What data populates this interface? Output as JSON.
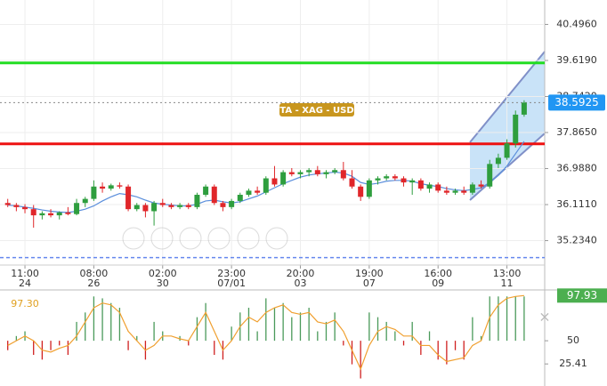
{
  "chart_data": [
    {
      "type": "candlestick",
      "annotation": "TA - XAG - USD",
      "categories": [
        null,
        null,
        {
          "time": "11:00",
          "date": "24"
        },
        null,
        null,
        null,
        null,
        null,
        null,
        null,
        {
          "time": "08:00",
          "date": "26"
        },
        null,
        null,
        null,
        null,
        null,
        null,
        null,
        {
          "time": "02:00",
          "date": "30"
        },
        null,
        null,
        null,
        null,
        null,
        null,
        null,
        {
          "time": "23:00",
          "date": "07/01"
        },
        null,
        null,
        null,
        null,
        null,
        null,
        null,
        {
          "time": "20:00",
          "date": "03"
        },
        null,
        null,
        null,
        null,
        null,
        null,
        null,
        {
          "time": "19:00",
          "date": "07"
        },
        null,
        null,
        null,
        null,
        null,
        null,
        null,
        {
          "time": "16:00",
          "date": "09"
        },
        null,
        null,
        null,
        null,
        null,
        null,
        null,
        {
          "time": "13:00",
          "date": "11"
        },
        null,
        null
      ],
      "open": [
        36.15,
        36.1,
        36.05,
        36.0,
        35.85,
        35.9,
        35.85,
        35.92,
        35.88,
        36.15,
        36.25,
        36.55,
        36.5,
        36.58,
        36.55,
        36.0,
        36.1,
        35.95,
        36.15,
        36.1,
        36.05,
        36.1,
        36.05,
        36.35,
        36.55,
        36.15,
        36.05,
        36.2,
        36.35,
        36.45,
        36.4,
        36.75,
        36.6,
        36.9,
        36.85,
        36.9,
        36.95,
        36.85,
        36.9,
        36.95,
        36.75,
        36.55,
        36.3,
        36.7,
        36.75,
        36.8,
        36.75,
        36.65,
        36.7,
        36.5,
        36.6,
        36.45,
        36.4,
        36.45,
        36.4,
        36.6,
        36.55,
        37.1,
        37.25,
        37.6,
        38.3
      ],
      "high": [
        36.25,
        36.15,
        36.12,
        36.1,
        35.95,
        36.0,
        35.95,
        36.05,
        36.25,
        36.3,
        36.7,
        36.65,
        36.62,
        36.65,
        36.6,
        36.15,
        36.15,
        36.2,
        36.25,
        36.15,
        36.15,
        36.15,
        36.4,
        36.6,
        36.6,
        36.2,
        36.25,
        36.4,
        36.5,
        36.55,
        36.8,
        37.05,
        36.95,
        37.0,
        36.95,
        37.0,
        37.05,
        36.95,
        37.0,
        37.15,
        36.95,
        36.6,
        36.75,
        36.8,
        36.85,
        36.85,
        36.8,
        36.75,
        36.75,
        36.65,
        36.65,
        36.55,
        36.5,
        36.55,
        36.65,
        36.7,
        37.2,
        37.35,
        37.7,
        38.4,
        38.65
      ],
      "low": [
        36.05,
        35.95,
        35.9,
        35.55,
        35.75,
        35.8,
        35.75,
        35.85,
        35.85,
        36.05,
        36.2,
        36.4,
        36.45,
        36.5,
        35.95,
        35.95,
        35.8,
        35.6,
        36.05,
        36.0,
        36.0,
        36.0,
        36.0,
        36.3,
        36.1,
        35.95,
        36.0,
        36.15,
        36.3,
        36.35,
        36.35,
        36.55,
        36.55,
        36.8,
        36.75,
        36.8,
        36.8,
        36.75,
        36.85,
        36.7,
        36.5,
        36.2,
        36.25,
        36.6,
        36.7,
        36.7,
        36.55,
        36.35,
        36.45,
        36.4,
        36.4,
        36.35,
        36.35,
        36.35,
        36.35,
        36.5,
        36.5,
        37.0,
        37.2,
        37.5,
        38.25
      ],
      "close": [
        36.1,
        36.05,
        36.0,
        35.85,
        35.9,
        35.85,
        35.92,
        35.88,
        36.15,
        36.25,
        36.55,
        36.5,
        36.58,
        36.55,
        36.0,
        36.1,
        35.95,
        36.15,
        36.1,
        36.05,
        36.1,
        36.05,
        36.35,
        36.55,
        36.15,
        36.05,
        36.2,
        36.35,
        36.45,
        36.4,
        36.75,
        36.6,
        36.9,
        36.85,
        36.9,
        36.95,
        36.85,
        36.9,
        36.95,
        36.75,
        36.55,
        36.3,
        36.7,
        36.75,
        36.8,
        36.75,
        36.65,
        36.7,
        36.5,
        36.6,
        36.45,
        36.4,
        36.45,
        36.4,
        36.6,
        36.55,
        37.1,
        37.25,
        37.6,
        38.3,
        38.5925
      ],
      "up_color": "#2e9e3e",
      "down_color": "#e0262a",
      "ma": {
        "color": "#5b8fdc",
        "values": [
          36.1,
          36.08,
          36.05,
          36.02,
          35.98,
          35.95,
          35.93,
          35.92,
          35.95,
          36.0,
          36.08,
          36.2,
          36.3,
          36.38,
          36.35,
          36.3,
          36.22,
          36.15,
          36.12,
          36.1,
          36.08,
          36.08,
          36.12,
          36.2,
          36.22,
          36.18,
          36.15,
          36.18,
          36.25,
          36.32,
          36.42,
          36.52,
          36.62,
          36.7,
          36.78,
          36.83,
          36.86,
          36.88,
          36.9,
          36.88,
          36.8,
          36.65,
          36.6,
          36.63,
          36.68,
          36.7,
          36.7,
          36.68,
          36.62,
          36.58,
          36.55,
          36.5,
          36.47,
          36.45,
          36.48,
          36.52,
          36.65,
          36.82,
          37.05,
          37.35,
          37.65
        ]
      },
      "levels": [
        {
          "value": 39.56,
          "color": "#22dd22",
          "dashed": false
        },
        {
          "value": 37.59,
          "color": "#ee1111",
          "dashed": false
        },
        {
          "value": 34.82,
          "color": "#6688ee",
          "dashed": true
        }
      ],
      "last_price": 38.5925,
      "ylim": [
        34.64,
        41.09
      ],
      "yticks": [
        {
          "value": 35.234,
          "label": "35.2340"
        },
        {
          "value": 36.111,
          "label": "36.1110"
        },
        {
          "value": 36.988,
          "label": "36.9880"
        },
        {
          "value": 37.865,
          "label": "37.8650"
        },
        {
          "value": 38.742,
          "label": "38.7420"
        },
        {
          "value": 39.619,
          "label": "39.6190"
        },
        {
          "value": 40.496,
          "label": "40.4960"
        }
      ],
      "grid": true
    },
    {
      "type": "oscillator",
      "label": "97.30",
      "baseline": 50,
      "hist": [
        40,
        55,
        60,
        35,
        30,
        40,
        45,
        35,
        70,
        80,
        97,
        95,
        90,
        85,
        40,
        55,
        30,
        70,
        60,
        50,
        55,
        45,
        75,
        90,
        35,
        30,
        65,
        80,
        85,
        60,
        95,
        85,
        90,
        75,
        80,
        85,
        60,
        70,
        80,
        45,
        25,
        10,
        80,
        75,
        70,
        60,
        45,
        70,
        35,
        60,
        30,
        25,
        40,
        30,
        75,
        55,
        97,
        97,
        97,
        97,
        97
      ],
      "line": {
        "color": "#f0a030",
        "values": [
          45,
          50,
          55,
          50,
          40,
          38,
          42,
          45,
          55,
          70,
          85,
          90,
          88,
          80,
          60,
          50,
          40,
          45,
          55,
          55,
          52,
          50,
          65,
          80,
          60,
          40,
          50,
          65,
          75,
          70,
          80,
          85,
          88,
          80,
          78,
          80,
          70,
          68,
          72,
          60,
          40,
          20,
          45,
          60,
          65,
          62,
          55,
          55,
          45,
          45,
          35,
          28,
          30,
          32,
          45,
          50,
          75,
          88,
          95,
          97,
          97.93
        ]
      },
      "current": 97.93,
      "up_color": "#4a9a5a",
      "down_color": "#d02020",
      "ylim": [
        2,
        102
      ],
      "yticks": [
        25.41,
        50
      ]
    }
  ]
}
